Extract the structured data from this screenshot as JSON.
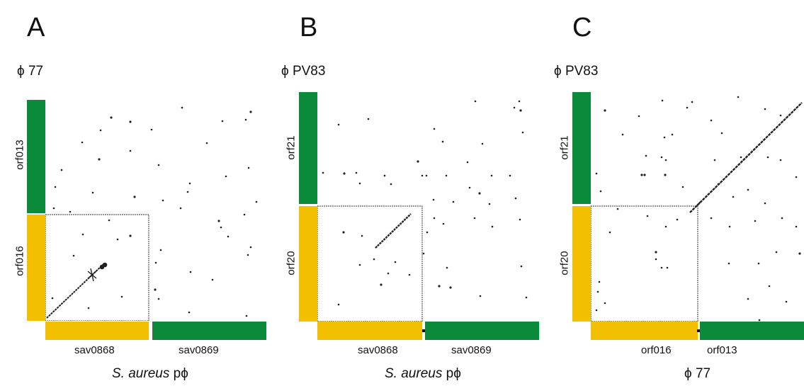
{
  "panels": [
    {
      "letter": "A",
      "y_genome": "77",
      "x_genome_italic": "S. aureus",
      "x_genome_suffix": " p",
      "y_genes": [
        "orf013",
        "orf016"
      ],
      "x_genes": [
        "sav0868",
        "sav0869"
      ]
    },
    {
      "letter": "B",
      "y_genome": "PV83",
      "x_genome_italic": "S. aureus",
      "x_genome_suffix": " p",
      "y_genes": [
        "orf21",
        "orf20"
      ],
      "x_genes": [
        "sav0868",
        "sav0869"
      ]
    },
    {
      "letter": "C",
      "y_genome": "PV83",
      "x_genome_italic": "",
      "x_genome_suffix": "77",
      "y_genes": [
        "orf21",
        "orf20"
      ],
      "x_genes": [
        "orf016",
        "orf013"
      ]
    }
  ],
  "phi": "ϕ",
  "colors": {
    "green": "#0a8a3a",
    "yellow": "#f2c000",
    "dots": "#222222"
  }
}
